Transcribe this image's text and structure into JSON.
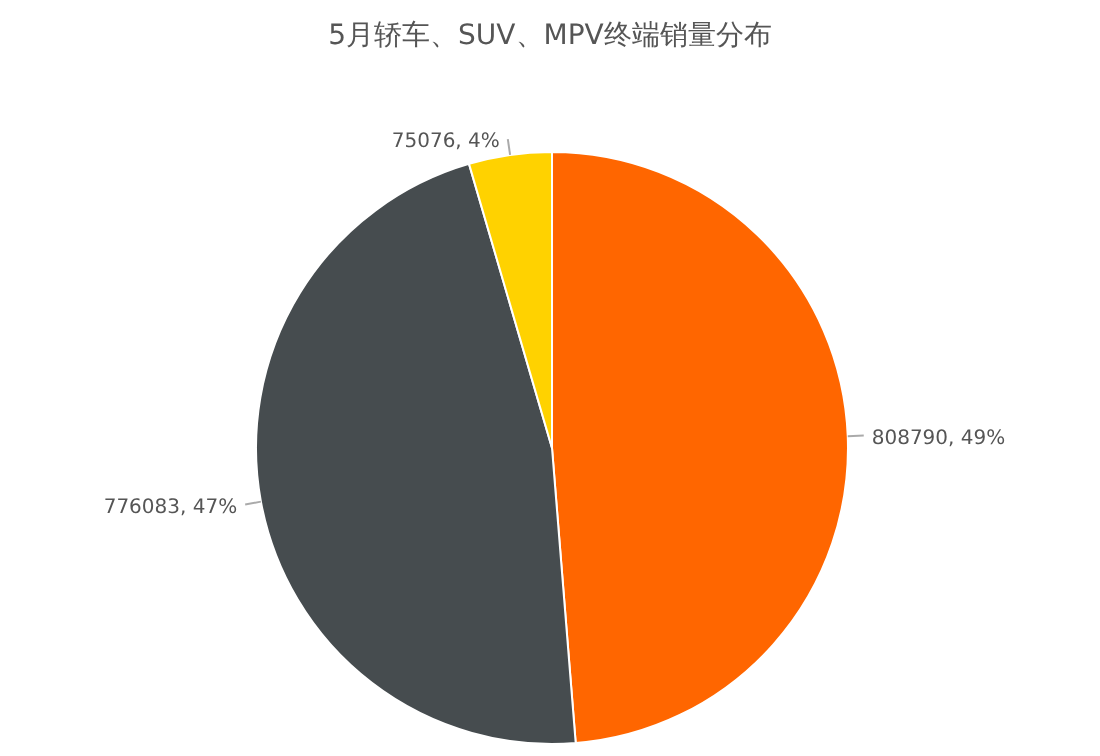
{
  "chart_data": {
    "type": "pie",
    "title": "5月轿车、SUV、MPV终端销量分布",
    "categories": [
      null,
      null,
      null
    ],
    "values": [
      808790,
      776083,
      75076
    ],
    "colors": [
      "#ff6600",
      "#464c4f",
      "#ffd200"
    ],
    "value_labels": [
      "808790, 49%",
      "776083, 47%",
      "75076, 4%"
    ]
  }
}
